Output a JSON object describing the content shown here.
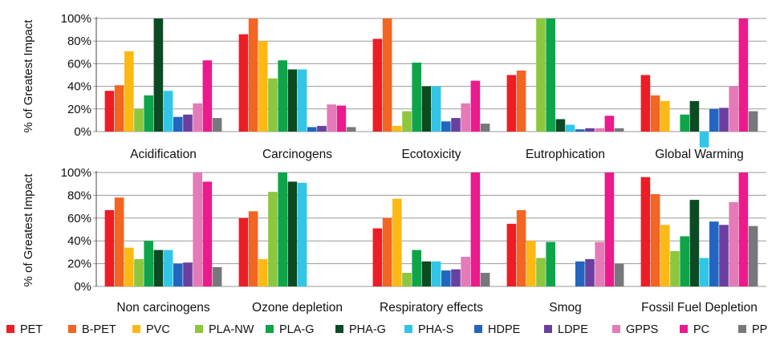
{
  "chart_data": {
    "type": "bar",
    "ylabel": "% of Greatest Impact",
    "ylim": [
      0,
      100
    ],
    "yticks": [
      "0%",
      "20%",
      "40%",
      "60%",
      "80%",
      "100%"
    ],
    "grid": true,
    "legend_position": "bottom",
    "series": [
      {
        "name": "PET",
        "color": "#ee1c25"
      },
      {
        "name": "B-PET",
        "color": "#f26522"
      },
      {
        "name": "PVC",
        "color": "#fdb913"
      },
      {
        "name": "PLA-NW",
        "color": "#8dc63f"
      },
      {
        "name": "PLA-G",
        "color": "#0fa44a"
      },
      {
        "name": "PHA-G",
        "color": "#0c4a23"
      },
      {
        "name": "PHA-S",
        "color": "#33c5e8"
      },
      {
        "name": "HDPE",
        "color": "#2266c0"
      },
      {
        "name": "LDPE",
        "color": "#6a3fa0"
      },
      {
        "name": "GPPS",
        "color": "#e47ab8"
      },
      {
        "name": "PC",
        "color": "#ec1a8c"
      },
      {
        "name": "PP",
        "color": "#77787b"
      }
    ],
    "panels": [
      {
        "categories": [
          "Acidification",
          "Carcinogens",
          "Ecotoxicity",
          "Eutrophication",
          "Global Warming"
        ],
        "values": [
          [
            36,
            41,
            71,
            20,
            32,
            100,
            36,
            13,
            15,
            25,
            63,
            12
          ],
          [
            86,
            100,
            80,
            47,
            63,
            55,
            55,
            4,
            5,
            24,
            23,
            4
          ],
          [
            82,
            100,
            5,
            18,
            61,
            40,
            40,
            9,
            12,
            25,
            45,
            7
          ],
          [
            50,
            54,
            0,
            100,
            100,
            11,
            6,
            2,
            3,
            3,
            14,
            3
          ],
          [
            50,
            32,
            27,
            0,
            15,
            27,
            -14,
            20,
            21,
            40,
            100,
            18
          ]
        ]
      },
      {
        "categories": [
          "Non carcinogens",
          "Ozone depletion",
          "Respiratory effects",
          "Smog",
          "Fossil Fuel Depletion"
        ],
        "values": [
          [
            67,
            78,
            34,
            24,
            40,
            32,
            32,
            20,
            21,
            100,
            92,
            17
          ],
          [
            60,
            66,
            24,
            83,
            100,
            92,
            91,
            0,
            0,
            0,
            0,
            0
          ],
          [
            51,
            60,
            77,
            12,
            32,
            22,
            22,
            14,
            15,
            26,
            100,
            12
          ],
          [
            55,
            67,
            40,
            25,
            39,
            0,
            0,
            22,
            24,
            39,
            100,
            20
          ],
          [
            96,
            81,
            54,
            31,
            44,
            76,
            25,
            57,
            54,
            74,
            100,
            53
          ]
        ]
      }
    ]
  }
}
